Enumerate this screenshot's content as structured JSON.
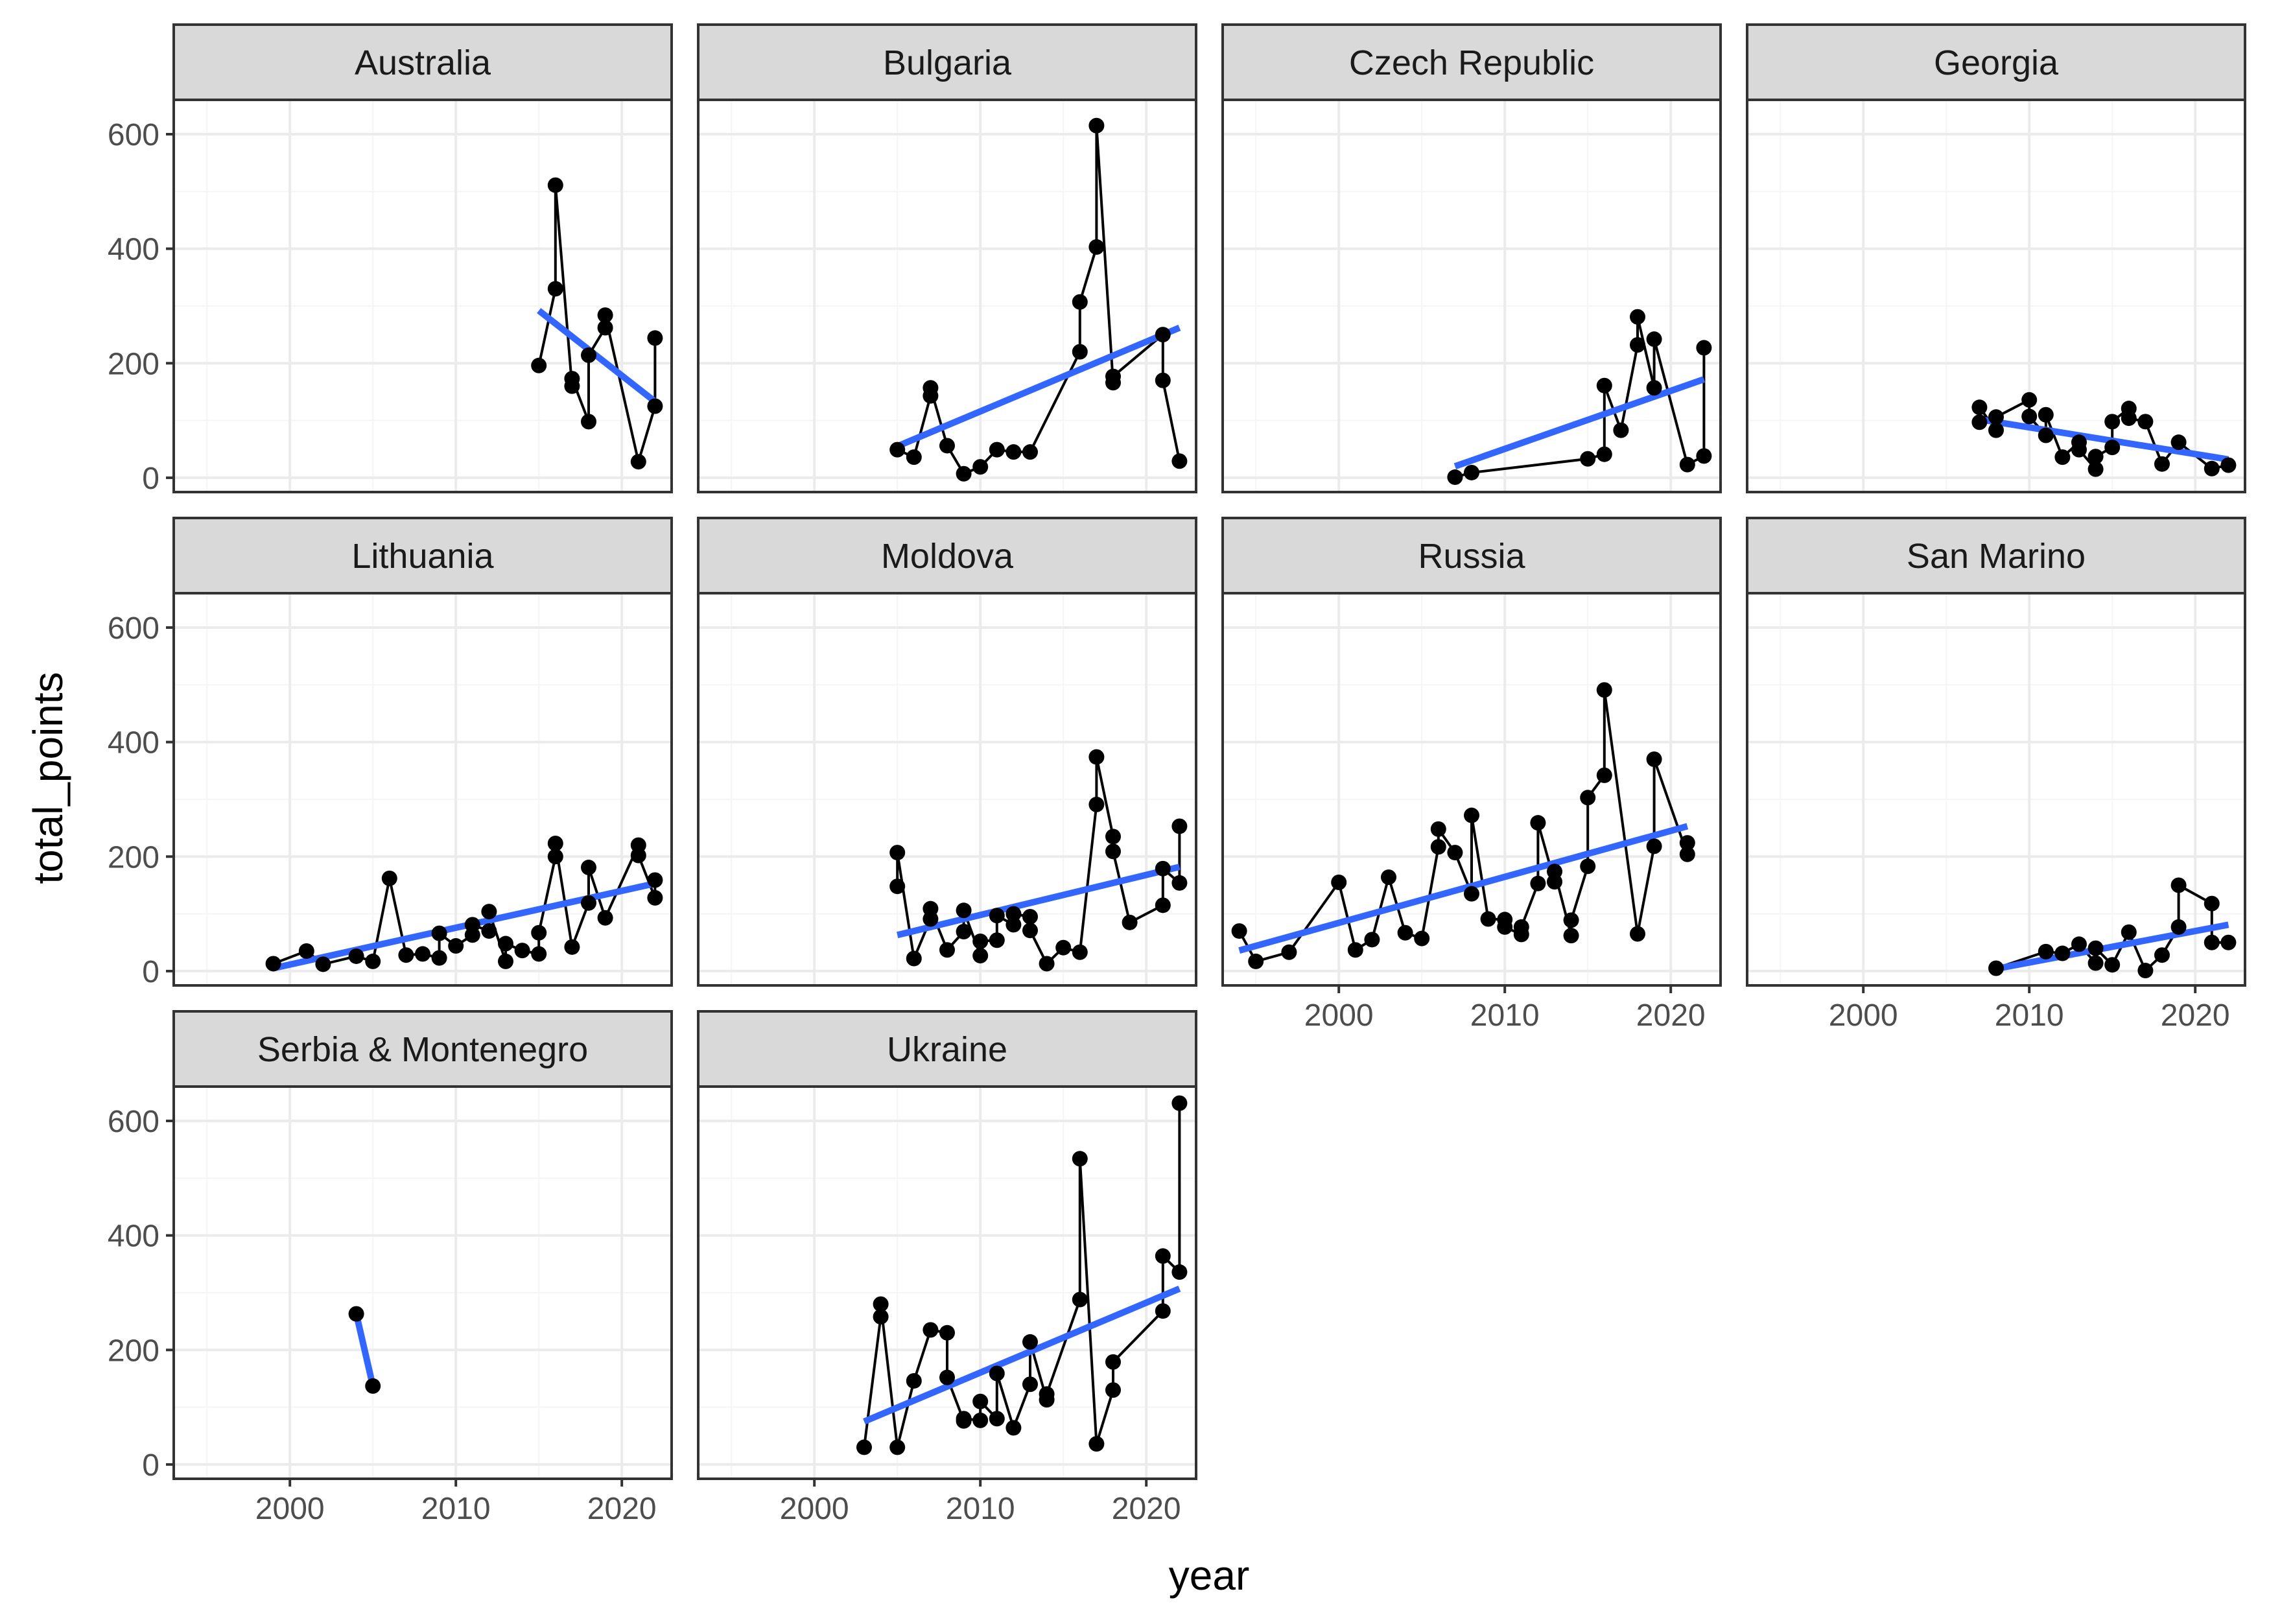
{
  "chart_data": {
    "type": "line",
    "layout": "facet_wrap",
    "xlabel": "year",
    "ylabel": "total_points",
    "xlim": [
      1993,
      2023
    ],
    "ylim": [
      -25,
      660
    ],
    "x_ticks": [
      2000,
      2010,
      2020
    ],
    "y_ticks": [
      0,
      200,
      400,
      600
    ],
    "grid": true,
    "colors": {
      "points": "#000000",
      "line": "#000000",
      "trend": "#3366FF",
      "strip": "#D9D9D9",
      "border": "#333333",
      "grid_major": "#EBEBEB",
      "grid_minor": "#F5F5F5"
    },
    "facets": [
      {
        "name": "Australia",
        "points": [
          [
            2015,
            196
          ],
          [
            2016,
            330
          ],
          [
            2016,
            511
          ],
          [
            2017,
            160
          ],
          [
            2017,
            173
          ],
          [
            2018,
            98
          ],
          [
            2018,
            214
          ],
          [
            2019,
            262
          ],
          [
            2019,
            284
          ],
          [
            2021,
            28
          ],
          [
            2022,
            125
          ],
          [
            2022,
            244
          ]
        ],
        "trend": [
          [
            2015,
            292
          ],
          [
            2022,
            133
          ]
        ]
      },
      {
        "name": "Bulgaria",
        "points": [
          [
            2005,
            49
          ],
          [
            2006,
            36
          ],
          [
            2007,
            143
          ],
          [
            2007,
            157
          ],
          [
            2008,
            56
          ],
          [
            2009,
            7
          ],
          [
            2010,
            19
          ],
          [
            2011,
            49
          ],
          [
            2012,
            45
          ],
          [
            2013,
            45
          ],
          [
            2016,
            220
          ],
          [
            2016,
            307
          ],
          [
            2017,
            403
          ],
          [
            2017,
            615
          ],
          [
            2018,
            166
          ],
          [
            2018,
            177
          ],
          [
            2021,
            250
          ],
          [
            2021,
            170
          ],
          [
            2022,
            29
          ]
        ],
        "trend": [
          [
            2005,
            55
          ],
          [
            2022,
            262
          ]
        ]
      },
      {
        "name": "Czech Republic",
        "points": [
          [
            2007,
            1
          ],
          [
            2008,
            9
          ],
          [
            2015,
            33
          ],
          [
            2016,
            41
          ],
          [
            2016,
            161
          ],
          [
            2017,
            83
          ],
          [
            2018,
            232
          ],
          [
            2018,
            281
          ],
          [
            2019,
            157
          ],
          [
            2019,
            242
          ],
          [
            2021,
            23
          ],
          [
            2022,
            38
          ],
          [
            2022,
            227
          ]
        ],
        "trend": [
          [
            2007,
            20
          ],
          [
            2022,
            172
          ]
        ]
      },
      {
        "name": "Georgia",
        "points": [
          [
            2007,
            97
          ],
          [
            2007,
            123
          ],
          [
            2008,
            83
          ],
          [
            2008,
            106
          ],
          [
            2010,
            136
          ],
          [
            2010,
            107
          ],
          [
            2011,
            74
          ],
          [
            2011,
            110
          ],
          [
            2012,
            36
          ],
          [
            2013,
            62
          ],
          [
            2013,
            49
          ],
          [
            2014,
            15
          ],
          [
            2014,
            37
          ],
          [
            2015,
            53
          ],
          [
            2015,
            98
          ],
          [
            2016,
            121
          ],
          [
            2016,
            104
          ],
          [
            2017,
            98
          ],
          [
            2018,
            24
          ],
          [
            2019,
            62
          ],
          [
            2021,
            16
          ],
          [
            2022,
            22
          ]
        ],
        "trend": [
          [
            2007,
            102
          ],
          [
            2022,
            32
          ]
        ]
      },
      {
        "name": "Lithuania",
        "points": [
          [
            1999,
            13
          ],
          [
            2001,
            35
          ],
          [
            2002,
            12
          ],
          [
            2004,
            26
          ],
          [
            2005,
            17
          ],
          [
            2006,
            162
          ],
          [
            2007,
            28
          ],
          [
            2008,
            30
          ],
          [
            2009,
            23
          ],
          [
            2009,
            66
          ],
          [
            2010,
            44
          ],
          [
            2011,
            63
          ],
          [
            2011,
            81
          ],
          [
            2012,
            70
          ],
          [
            2012,
            104
          ],
          [
            2013,
            17
          ],
          [
            2013,
            48
          ],
          [
            2014,
            36
          ],
          [
            2015,
            30
          ],
          [
            2015,
            67
          ],
          [
            2016,
            200
          ],
          [
            2016,
            223
          ],
          [
            2017,
            42
          ],
          [
            2018,
            119
          ],
          [
            2018,
            181
          ],
          [
            2019,
            93
          ],
          [
            2021,
            220
          ],
          [
            2021,
            202
          ],
          [
            2022,
            128
          ],
          [
            2022,
            159
          ]
        ],
        "trend": [
          [
            1999,
            5
          ],
          [
            2022,
            153
          ]
        ]
      },
      {
        "name": "Moldova",
        "points": [
          [
            2005,
            148
          ],
          [
            2005,
            207
          ],
          [
            2006,
            22
          ],
          [
            2007,
            91
          ],
          [
            2007,
            109
          ],
          [
            2008,
            37
          ],
          [
            2009,
            69
          ],
          [
            2009,
            106
          ],
          [
            2010,
            27
          ],
          [
            2010,
            52
          ],
          [
            2011,
            54
          ],
          [
            2011,
            97
          ],
          [
            2012,
            81
          ],
          [
            2012,
            100
          ],
          [
            2013,
            95
          ],
          [
            2013,
            71
          ],
          [
            2014,
            13
          ],
          [
            2015,
            41
          ],
          [
            2016,
            33
          ],
          [
            2017,
            291
          ],
          [
            2017,
            374
          ],
          [
            2018,
            235
          ],
          [
            2018,
            209
          ],
          [
            2019,
            85
          ],
          [
            2021,
            115
          ],
          [
            2021,
            179
          ],
          [
            2022,
            154
          ],
          [
            2022,
            253
          ]
        ],
        "trend": [
          [
            2005,
            63
          ],
          [
            2022,
            182
          ]
        ]
      },
      {
        "name": "Russia",
        "points": [
          [
            1994,
            70
          ],
          [
            1995,
            17
          ],
          [
            1997,
            33
          ],
          [
            2000,
            155
          ],
          [
            2001,
            37
          ],
          [
            2002,
            55
          ],
          [
            2003,
            164
          ],
          [
            2004,
            67
          ],
          [
            2005,
            57
          ],
          [
            2006,
            217
          ],
          [
            2006,
            248
          ],
          [
            2007,
            207
          ],
          [
            2008,
            135
          ],
          [
            2008,
            272
          ],
          [
            2009,
            91
          ],
          [
            2010,
            90
          ],
          [
            2010,
            77
          ],
          [
            2011,
            64
          ],
          [
            2011,
            77
          ],
          [
            2012,
            153
          ],
          [
            2012,
            259
          ],
          [
            2013,
            156
          ],
          [
            2013,
            174
          ],
          [
            2014,
            62
          ],
          [
            2014,
            89
          ],
          [
            2015,
            183
          ],
          [
            2015,
            303
          ],
          [
            2016,
            342
          ],
          [
            2016,
            491
          ],
          [
            2018,
            65
          ],
          [
            2019,
            218
          ],
          [
            2019,
            370
          ],
          [
            2021,
            204
          ],
          [
            2021,
            224
          ]
        ],
        "trend": [
          [
            1994,
            36
          ],
          [
            2021,
            253
          ]
        ]
      },
      {
        "name": "San Marino",
        "points": [
          [
            2008,
            5
          ],
          [
            2011,
            34
          ],
          [
            2012,
            31
          ],
          [
            2013,
            47
          ],
          [
            2014,
            14
          ],
          [
            2014,
            40
          ],
          [
            2015,
            11
          ],
          [
            2016,
            68
          ],
          [
            2017,
            1
          ],
          [
            2018,
            28
          ],
          [
            2019,
            77
          ],
          [
            2019,
            150
          ],
          [
            2021,
            118
          ],
          [
            2021,
            50
          ],
          [
            2022,
            50
          ]
        ],
        "trend": [
          [
            2008,
            4
          ],
          [
            2022,
            81
          ]
        ]
      },
      {
        "name": "Serbia & Montenegro",
        "points": [
          [
            2004,
            263
          ],
          [
            2005,
            137
          ]
        ],
        "trend": [
          [
            2004,
            263
          ],
          [
            2005,
            137
          ]
        ]
      },
      {
        "name": "Ukraine",
        "points": [
          [
            2003,
            30
          ],
          [
            2004,
            258
          ],
          [
            2004,
            280
          ],
          [
            2005,
            30
          ],
          [
            2006,
            146
          ],
          [
            2007,
            235
          ],
          [
            2008,
            230
          ],
          [
            2008,
            152
          ],
          [
            2009,
            76
          ],
          [
            2009,
            80
          ],
          [
            2010,
            77
          ],
          [
            2010,
            110
          ],
          [
            2011,
            80
          ],
          [
            2011,
            159
          ],
          [
            2012,
            64
          ],
          [
            2013,
            140
          ],
          [
            2013,
            214
          ],
          [
            2014,
            113
          ],
          [
            2014,
            123
          ],
          [
            2016,
            288
          ],
          [
            2016,
            534
          ],
          [
            2017,
            36
          ],
          [
            2018,
            130
          ],
          [
            2018,
            179
          ],
          [
            2021,
            268
          ],
          [
            2021,
            364
          ],
          [
            2022,
            336
          ],
          [
            2022,
            631
          ]
        ],
        "trend": [
          [
            2003,
            75
          ],
          [
            2022,
            307
          ]
        ]
      }
    ]
  }
}
